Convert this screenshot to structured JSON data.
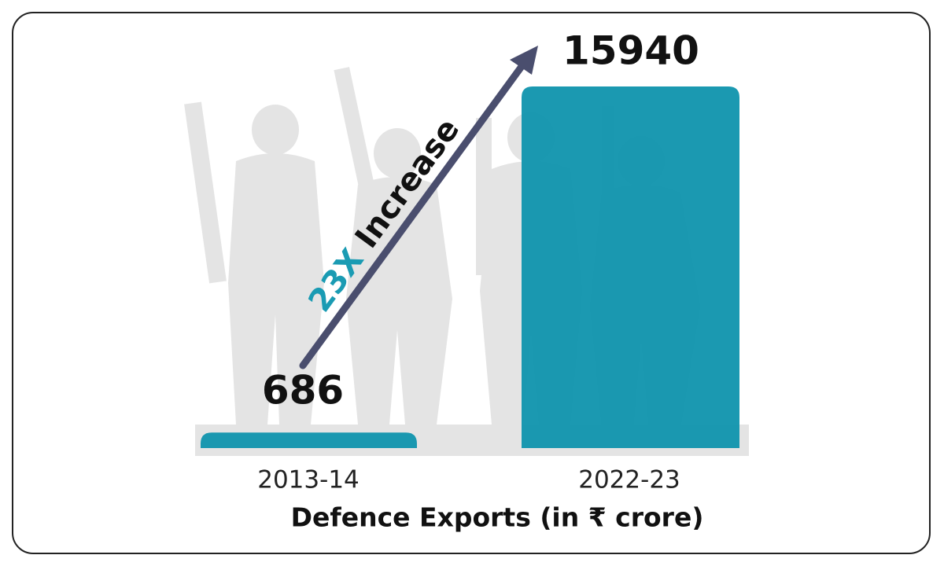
{
  "chart_data": {
    "type": "bar",
    "categories": [
      "2013-14",
      "2022-23"
    ],
    "values": [
      686,
      15940
    ],
    "color": "#0f93ad",
    "x_label": "Defence Exports (in ₹ crore)",
    "annotation": {
      "highlight": "23X",
      "text": "Increase",
      "highlight_color": "#1a9bb3",
      "arrow_color": "#4a4e6e"
    }
  }
}
